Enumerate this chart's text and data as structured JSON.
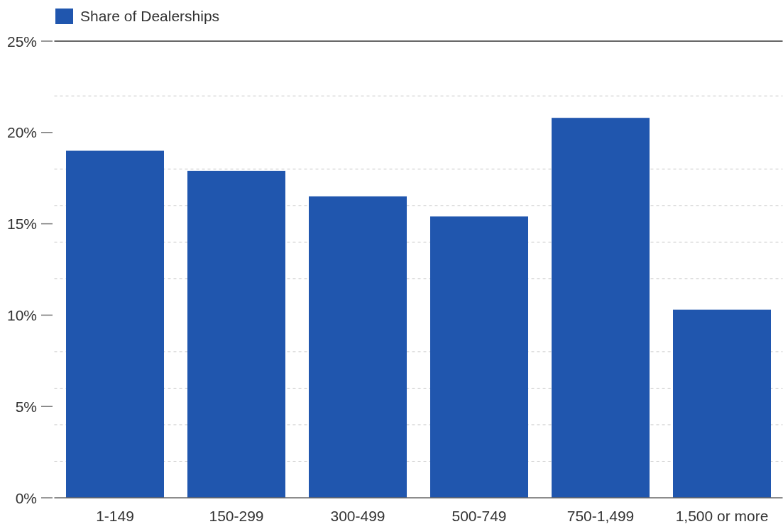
{
  "chart_data": {
    "type": "bar",
    "categories": [
      "1-149",
      "150-299",
      "300-499",
      "500-749",
      "750-1,499",
      "1,500 or more"
    ],
    "series": [
      {
        "name": "Share of Dealerships",
        "color": "#2056ae",
        "values": [
          19.0,
          17.9,
          16.5,
          15.4,
          20.8,
          10.3
        ]
      }
    ],
    "ylim": [
      0,
      25
    ],
    "yticks": [
      {
        "value": 0,
        "label": "0%"
      },
      {
        "value": 2,
        "label": null
      },
      {
        "value": 4,
        "label": null
      },
      {
        "value": 5,
        "label": "5%"
      },
      {
        "value": 6,
        "label": null
      },
      {
        "value": 8,
        "label": null
      },
      {
        "value": 10,
        "label": "10%"
      },
      {
        "value": 12,
        "label": null
      },
      {
        "value": 14,
        "label": null
      },
      {
        "value": 15,
        "label": "15%"
      },
      {
        "value": 16,
        "label": null
      },
      {
        "value": 18,
        "label": null
      },
      {
        "value": 20,
        "label": "20%"
      },
      {
        "value": 22,
        "label": null
      },
      {
        "value": 25,
        "label": "25%"
      }
    ],
    "grid": "y",
    "legend": "top left"
  }
}
